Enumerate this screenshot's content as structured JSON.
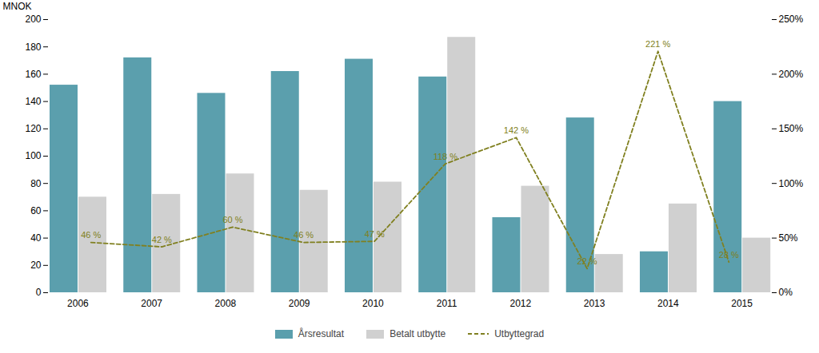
{
  "chart_data": {
    "type": "bar",
    "categories": [
      "2006",
      "2007",
      "2008",
      "2009",
      "2010",
      "2011",
      "2012",
      "2013",
      "2014",
      "2015"
    ],
    "series": [
      {
        "name": "Årsresultat",
        "color": "#5b9fad",
        "values": [
          152,
          172,
          146,
          162,
          171,
          158,
          55,
          128,
          30,
          140
        ]
      },
      {
        "name": "Betalt utbytte",
        "color": "#d0d0d0",
        "values": [
          70,
          72,
          87,
          75,
          81,
          187,
          78,
          28,
          65,
          40
        ]
      },
      {
        "name": "Utbyttegrad",
        "color": "#808020",
        "type": "line",
        "line_style": "dashed",
        "axis": "y2",
        "data_labels": true,
        "values": [
          46,
          42,
          60,
          46,
          47,
          118,
          142,
          22,
          221,
          28
        ],
        "value_labels": [
          "46 %",
          "42 %",
          "60 %",
          "46 %",
          "47 %",
          "118 %",
          "142 %",
          "22 %",
          "221 %",
          "28 %"
        ]
      }
    ],
    "ylabel": "MNOK",
    "ylim": [
      0,
      200
    ],
    "yticks": [
      0,
      20,
      40,
      60,
      80,
      100,
      120,
      140,
      160,
      180,
      200
    ],
    "y2lim": [
      0,
      250
    ],
    "y2ticks": [
      {
        "value": 0,
        "label": "0%"
      },
      {
        "value": 50,
        "label": "50%"
      },
      {
        "value": 100,
        "label": "100%"
      },
      {
        "value": 150,
        "label": "150%"
      },
      {
        "value": 200,
        "label": "200%"
      },
      {
        "value": 250,
        "label": "250%"
      }
    ],
    "grid": false,
    "legend": "bottom"
  }
}
